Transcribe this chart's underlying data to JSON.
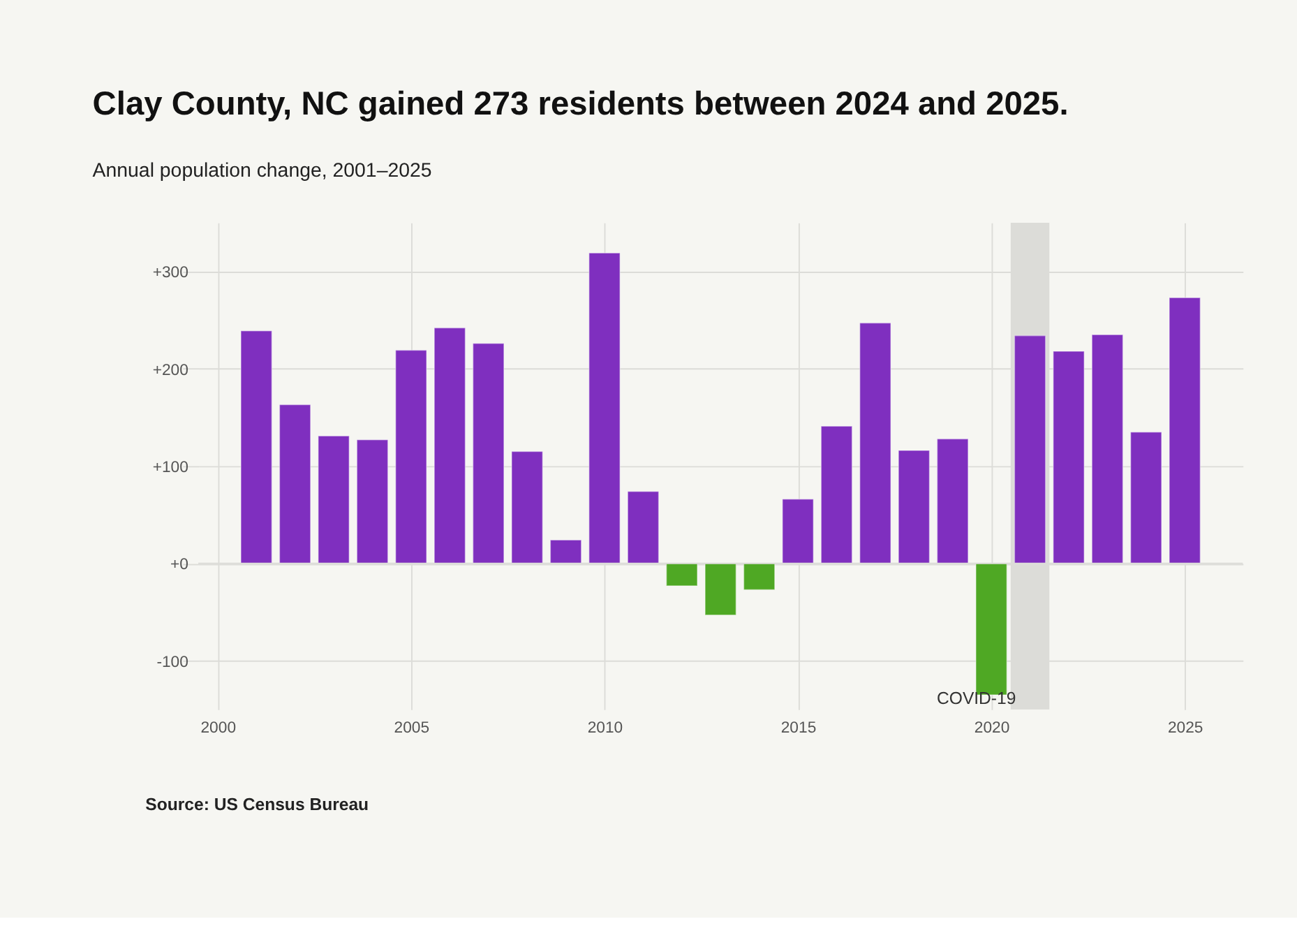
{
  "chart_data": {
    "type": "bar",
    "title": "Clay County, NC gained 273 residents between 2024 and 2025.",
    "subtitle": "Annual population change, 2001–2025",
    "x": [
      2001,
      2002,
      2003,
      2004,
      2005,
      2006,
      2007,
      2008,
      2009,
      2010,
      2011,
      2012,
      2013,
      2014,
      2015,
      2016,
      2017,
      2018,
      2019,
      2020,
      2021,
      2022,
      2023,
      2024,
      2025
    ],
    "values": [
      239,
      163,
      131,
      127,
      219,
      242,
      226,
      115,
      24,
      319,
      74,
      -23,
      -53,
      -27,
      66,
      141,
      247,
      116,
      128,
      -135,
      234,
      218,
      235,
      135,
      273
    ],
    "colors": [
      "#7f2fbf",
      "#7f2fbf",
      "#7f2fbf",
      "#7f2fbf",
      "#7f2fbf",
      "#7f2fbf",
      "#7f2fbf",
      "#7f2fbf",
      "#7f2fbf",
      "#7f2fbf",
      "#7f2fbf",
      "#4fa824",
      "#4fa824",
      "#4fa824",
      "#7f2fbf",
      "#7f2fbf",
      "#7f2fbf",
      "#7f2fbf",
      "#7f2fbf",
      "#4fa824",
      "#7f2fbf",
      "#7f2fbf",
      "#7f2fbf",
      "#7f2fbf",
      "#7f2fbf"
    ],
    "xlim": [
      1999.5,
      2026.5
    ],
    "xticks": [
      2000,
      2005,
      2010,
      2015,
      2020,
      2025
    ],
    "ylim": [
      -150,
      350
    ],
    "yticks": [
      {
        "value": -100,
        "label": "-100"
      },
      {
        "value": 0,
        "label": "+0"
      },
      {
        "value": 100,
        "label": "+100"
      },
      {
        "value": 200,
        "label": "+200"
      },
      {
        "value": 300,
        "label": "+300"
      }
    ],
    "bands": [
      {
        "axis": "x",
        "from": 2020.5,
        "to": 2021.5,
        "label": "COVID-19",
        "color": "#dcdcd8"
      }
    ],
    "grid": true,
    "annotations": [
      "Source: US Census Bureau"
    ]
  }
}
